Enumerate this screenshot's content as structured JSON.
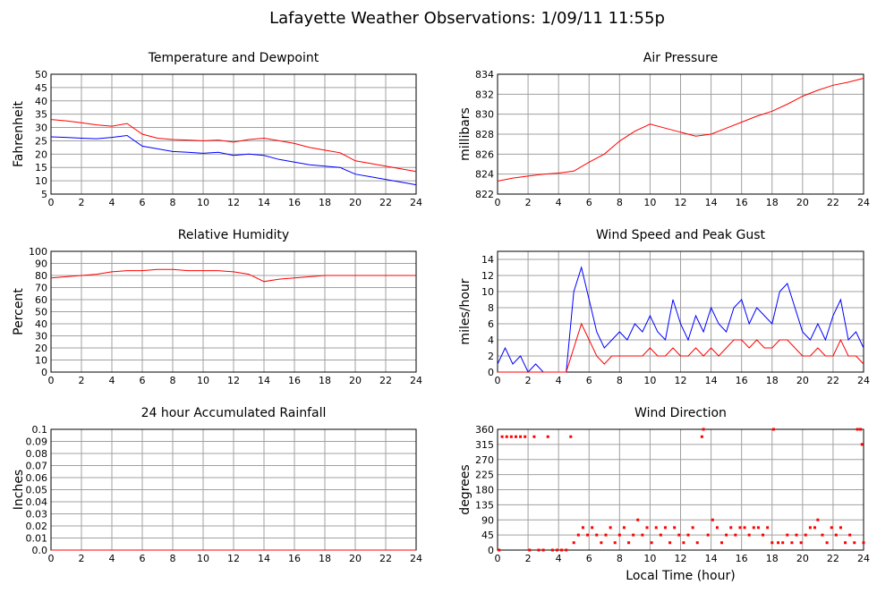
{
  "title": "Lafayette Weather Observations: 1/09/11 11:55p",
  "chart_data": [
    {
      "type": "line",
      "title": "Temperature and Dewpoint",
      "ylabel": "Fahrenheit",
      "x": [
        0,
        1,
        2,
        3,
        4,
        5,
        6,
        7,
        8,
        9,
        10,
        11,
        12,
        13,
        14,
        15,
        16,
        17,
        18,
        19,
        20,
        21,
        22,
        23,
        24
      ],
      "series": [
        {
          "color": "#ff0000",
          "values": [
            33,
            32.5,
            31.8,
            31,
            30.5,
            31.5,
            27.5,
            26,
            25.5,
            25.3,
            25,
            25.3,
            24.5,
            25.5,
            26,
            25,
            24,
            22.5,
            21.5,
            20.5,
            17.5,
            16.5,
            15.5,
            14.5,
            13.5
          ]
        },
        {
          "color": "#0000ff",
          "values": [
            26.5,
            26.3,
            26,
            25.8,
            26.3,
            27,
            23,
            22,
            21,
            20.7,
            20.3,
            20.7,
            19.5,
            20,
            19.5,
            18,
            17,
            16,
            15.5,
            15,
            12.5,
            11.5,
            10.5,
            9.5,
            8.5
          ]
        }
      ],
      "xlim": [
        0,
        24
      ],
      "xticks": [
        0,
        2,
        4,
        6,
        8,
        10,
        12,
        14,
        16,
        18,
        20,
        22,
        24
      ],
      "ylim": [
        5,
        50
      ],
      "yticks": [
        5,
        10,
        15,
        20,
        25,
        30,
        35,
        40,
        45,
        50
      ],
      "grid": true
    },
    {
      "type": "line",
      "title": "Air Pressure",
      "ylabel": "millibars",
      "x": [
        0,
        1,
        2,
        3,
        4,
        5,
        6,
        7,
        8,
        9,
        10,
        11,
        12,
        13,
        14,
        15,
        16,
        17,
        18,
        19,
        20,
        21,
        22,
        23,
        24
      ],
      "series": [
        {
          "color": "#ff0000",
          "values": [
            823.3,
            823.6,
            823.8,
            824,
            824.1,
            824.3,
            825.2,
            826,
            827.3,
            828.3,
            829,
            828.6,
            828.2,
            827.8,
            828,
            828.6,
            829.2,
            829.8,
            830.3,
            831,
            831.8,
            832.4,
            832.9,
            833.2,
            833.6
          ]
        }
      ],
      "xlim": [
        0,
        24
      ],
      "xticks": [
        0,
        2,
        4,
        6,
        8,
        10,
        12,
        14,
        16,
        18,
        20,
        22,
        24
      ],
      "ylim": [
        822,
        834
      ],
      "yticks": [
        822,
        824,
        826,
        828,
        830,
        832,
        834
      ],
      "grid": true
    },
    {
      "type": "line",
      "title": "Relative Humidity",
      "ylabel": "Percent",
      "x": [
        0,
        1,
        2,
        3,
        4,
        5,
        6,
        7,
        8,
        9,
        10,
        11,
        12,
        13,
        14,
        15,
        16,
        17,
        18,
        19,
        20,
        21,
        22,
        23,
        24
      ],
      "series": [
        {
          "color": "#ff0000",
          "values": [
            78,
            79,
            80,
            81,
            83,
            84,
            84,
            85,
            85,
            84,
            84,
            84,
            83,
            81,
            75,
            77,
            78,
            79,
            80,
            80,
            80,
            80,
            80,
            80,
            80
          ]
        }
      ],
      "xlim": [
        0,
        24
      ],
      "xticks": [
        0,
        2,
        4,
        6,
        8,
        10,
        12,
        14,
        16,
        18,
        20,
        22,
        24
      ],
      "ylim": [
        0,
        100
      ],
      "yticks": [
        0,
        10,
        20,
        30,
        40,
        50,
        60,
        70,
        80,
        90,
        100
      ],
      "grid": true
    },
    {
      "type": "line",
      "title": "Wind Speed and Peak Gust",
      "ylabel": "miles/hour",
      "x": [
        0,
        0.5,
        1,
        1.5,
        2,
        2.5,
        3,
        3.5,
        4,
        4.5,
        5,
        5.5,
        6,
        6.5,
        7,
        7.5,
        8,
        8.5,
        9,
        9.5,
        10,
        10.5,
        11,
        11.5,
        12,
        12.5,
        13,
        13.5,
        14,
        14.5,
        15,
        15.5,
        16,
        16.5,
        17,
        17.5,
        18,
        18.5,
        19,
        19.5,
        20,
        20.5,
        21,
        21.5,
        22,
        22.5,
        23,
        23.5,
        24
      ],
      "series": [
        {
          "color": "#0000ff",
          "values": [
            1,
            3,
            1,
            2,
            0,
            1,
            0,
            0,
            0,
            0,
            10,
            13,
            9,
            5,
            3,
            4,
            5,
            4,
            6,
            5,
            7,
            5,
            4,
            9,
            6,
            4,
            7,
            5,
            8,
            6,
            5,
            8,
            9,
            6,
            8,
            7,
            6,
            10,
            11,
            8,
            5,
            4,
            6,
            4,
            7,
            9,
            4,
            5,
            3
          ]
        },
        {
          "color": "#ff0000",
          "values": [
            0,
            0,
            0,
            0,
            0,
            0,
            0,
            0,
            0,
            0,
            3,
            6,
            4,
            2,
            1,
            2,
            2,
            2,
            2,
            2,
            3,
            2,
            2,
            3,
            2,
            2,
            3,
            2,
            3,
            2,
            3,
            4,
            4,
            3,
            4,
            3,
            3,
            4,
            4,
            3,
            2,
            2,
            3,
            2,
            2,
            4,
            2,
            2,
            1
          ]
        }
      ],
      "xlim": [
        0,
        24
      ],
      "xticks": [
        0,
        2,
        4,
        6,
        8,
        10,
        12,
        14,
        16,
        18,
        20,
        22,
        24
      ],
      "ylim": [
        0,
        15
      ],
      "yticks": [
        0,
        2,
        4,
        6,
        8,
        10,
        12,
        14
      ],
      "grid": true
    },
    {
      "type": "line",
      "title": "24 hour Accumulated Rainfall",
      "ylabel": "Inches",
      "x": [
        0,
        24
      ],
      "series": [
        {
          "color": "#ff0000",
          "values": [
            0,
            0
          ]
        }
      ],
      "xlim": [
        0,
        24
      ],
      "xticks": [
        0,
        2,
        4,
        6,
        8,
        10,
        12,
        14,
        16,
        18,
        20,
        22,
        24
      ],
      "ylim": [
        0,
        0.1
      ],
      "yticks": [
        {
          "value": 0,
          "label": "0.0"
        },
        0.01,
        0.02,
        0.03,
        0.04,
        0.05,
        0.06,
        0.07,
        0.08,
        0.09,
        0.1
      ],
      "grid": true
    },
    {
      "type": "scatter",
      "title": "Wind Direction",
      "ylabel": "degrees",
      "xlabel": "Local Time (hour)",
      "color": "#ff0000",
      "x": [
        0.1,
        0.3,
        0.6,
        0.9,
        1.2,
        1.5,
        1.8,
        2.1,
        2.4,
        2.7,
        3.0,
        3.3,
        3.6,
        3.9,
        4.2,
        4.5,
        4.8,
        5.0,
        5.3,
        5.6,
        5.9,
        6.2,
        6.5,
        6.8,
        7.1,
        7.4,
        7.7,
        8.0,
        8.3,
        8.6,
        8.9,
        9.2,
        9.5,
        9.8,
        10.1,
        10.4,
        10.7,
        11.0,
        11.3,
        11.6,
        11.9,
        12.2,
        12.5,
        12.8,
        13.1,
        13.4,
        13.5,
        13.8,
        14.1,
        14.4,
        14.7,
        15.0,
        15.3,
        15.6,
        15.9,
        16.2,
        16.5,
        16.8,
        17.1,
        17.4,
        17.7,
        18.0,
        18.1,
        18.4,
        18.7,
        19.0,
        19.3,
        19.6,
        19.9,
        20.2,
        20.5,
        20.8,
        21.0,
        21.3,
        21.6,
        21.9,
        22.2,
        22.5,
        22.8,
        23.1,
        23.4,
        23.6,
        23.8,
        23.9,
        24.0
      ],
      "values": [
        0,
        338,
        338,
        338,
        338,
        338,
        338,
        0,
        338,
        0,
        0,
        338,
        0,
        0,
        0,
        0,
        338,
        22,
        45,
        67,
        45,
        67,
        45,
        22,
        45,
        67,
        22,
        45,
        67,
        22,
        45,
        90,
        45,
        67,
        22,
        67,
        45,
        67,
        22,
        67,
        45,
        22,
        45,
        67,
        22,
        338,
        360,
        45,
        90,
        67,
        22,
        45,
        67,
        45,
        67,
        67,
        45,
        67,
        67,
        45,
        67,
        22,
        360,
        22,
        22,
        45,
        22,
        45,
        22,
        45,
        67,
        67,
        90,
        45,
        22,
        67,
        45,
        67,
        22,
        45,
        22,
        360,
        360,
        315,
        22
      ],
      "xlim": [
        0,
        24
      ],
      "xticks": [
        0,
        2,
        4,
        6,
        8,
        10,
        12,
        14,
        16,
        18,
        20,
        22,
        24
      ],
      "ylim": [
        0,
        360
      ],
      "yticks": [
        0,
        45,
        90,
        135,
        180,
        225,
        270,
        315,
        360
      ],
      "grid": true
    }
  ]
}
